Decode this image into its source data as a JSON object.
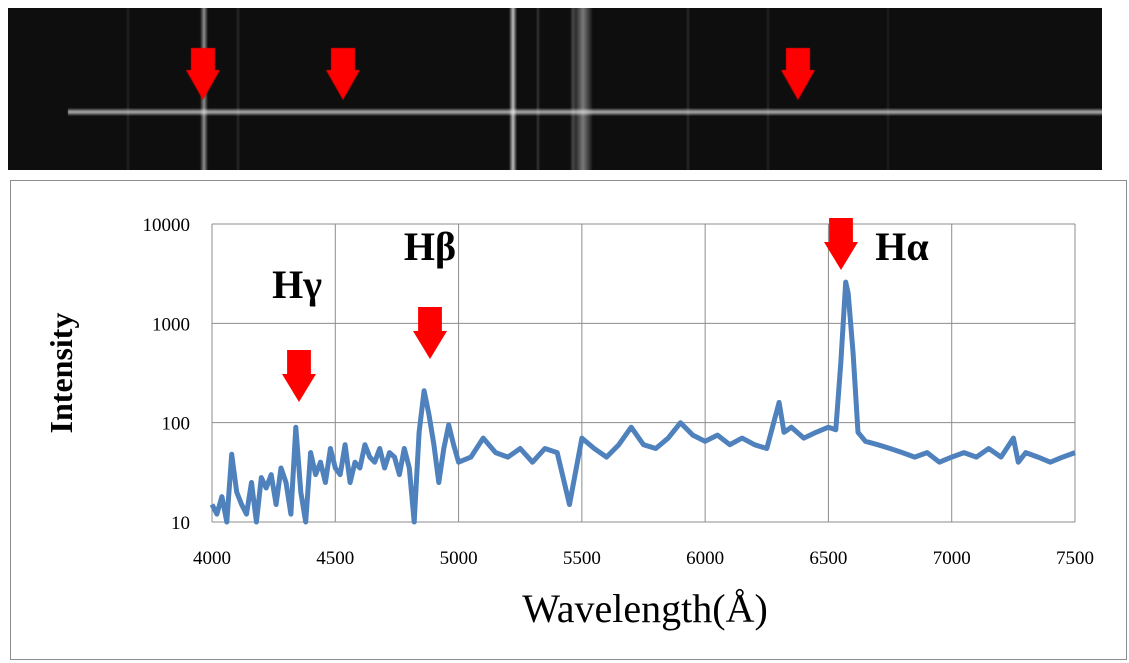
{
  "spectrum_image": {
    "background": "#0e0e0e",
    "arrow_color": "#ff0000",
    "arrows_data_x": [
      4000,
      4530,
      6380
    ]
  },
  "chart_data": {
    "type": "line",
    "title": "",
    "xlabel": "Wavelength(Å)",
    "ylabel": "Intensity",
    "xlim": [
      4000,
      7500
    ],
    "ylim": [
      10,
      10000
    ],
    "yscale": "log",
    "xticks": [
      "4000",
      "4500",
      "5000",
      "5500",
      "6000",
      "6500",
      "7000",
      "7500"
    ],
    "yticks": [
      "10",
      "100",
      "1000",
      "10000"
    ],
    "grid": true,
    "line_color": "#4f81bd",
    "arrow_color": "#ff0000",
    "series": [
      {
        "x": [
          4000,
          4020,
          4040,
          4060,
          4080,
          4100,
          4120,
          4140,
          4160,
          4180,
          4200,
          4220,
          4240,
          4260,
          4280,
          4300,
          4320,
          4340,
          4360,
          4380,
          4400,
          4420,
          4440,
          4460,
          4480,
          4500,
          4520,
          4540,
          4560,
          4580,
          4600,
          4620,
          4640,
          4660,
          4680,
          4700,
          4720,
          4740,
          4760,
          4780,
          4800,
          4820,
          4840,
          4860,
          4880,
          4900,
          4920,
          4940,
          4960,
          4980,
          5000,
          5050,
          5100,
          5150,
          5200,
          5250,
          5300,
          5350,
          5400,
          5450,
          5500,
          5550,
          5600,
          5650,
          5700,
          5750,
          5800,
          5850,
          5900,
          5950,
          6000,
          6050,
          6100,
          6150,
          6200,
          6250,
          6300,
          6320,
          6350,
          6400,
          6450,
          6500,
          6530,
          6550,
          6570,
          6580,
          6600,
          6620,
          6650,
          6700,
          6750,
          6800,
          6850,
          6900,
          6950,
          7000,
          7050,
          7100,
          7150,
          7200,
          7250,
          7270,
          7300,
          7350,
          7400,
          7450,
          7500
        ],
        "y": [
          15,
          12,
          18,
          10,
          48,
          20,
          15,
          12,
          25,
          10,
          28,
          22,
          30,
          15,
          35,
          25,
          12,
          90,
          20,
          10,
          50,
          30,
          40,
          25,
          55,
          35,
          30,
          60,
          25,
          40,
          35,
          60,
          45,
          40,
          55,
          35,
          50,
          45,
          30,
          55,
          35,
          10,
          80,
          210,
          120,
          60,
          25,
          55,
          95,
          60,
          40,
          45,
          70,
          50,
          45,
          55,
          40,
          55,
          50,
          15,
          70,
          55,
          45,
          60,
          90,
          60,
          55,
          70,
          100,
          75,
          65,
          75,
          60,
          70,
          60,
          55,
          160,
          80,
          90,
          70,
          80,
          90,
          85,
          400,
          2600,
          2000,
          500,
          80,
          65,
          60,
          55,
          50,
          45,
          50,
          40,
          45,
          50,
          45,
          55,
          45,
          70,
          40,
          50,
          45,
          40,
          45,
          50
        ]
      }
    ],
    "annotations": [
      {
        "label": "Hγ",
        "x": 4340
      },
      {
        "label": "Hβ",
        "x": 4861
      },
      {
        "label": "Hα",
        "x": 6563
      }
    ]
  }
}
